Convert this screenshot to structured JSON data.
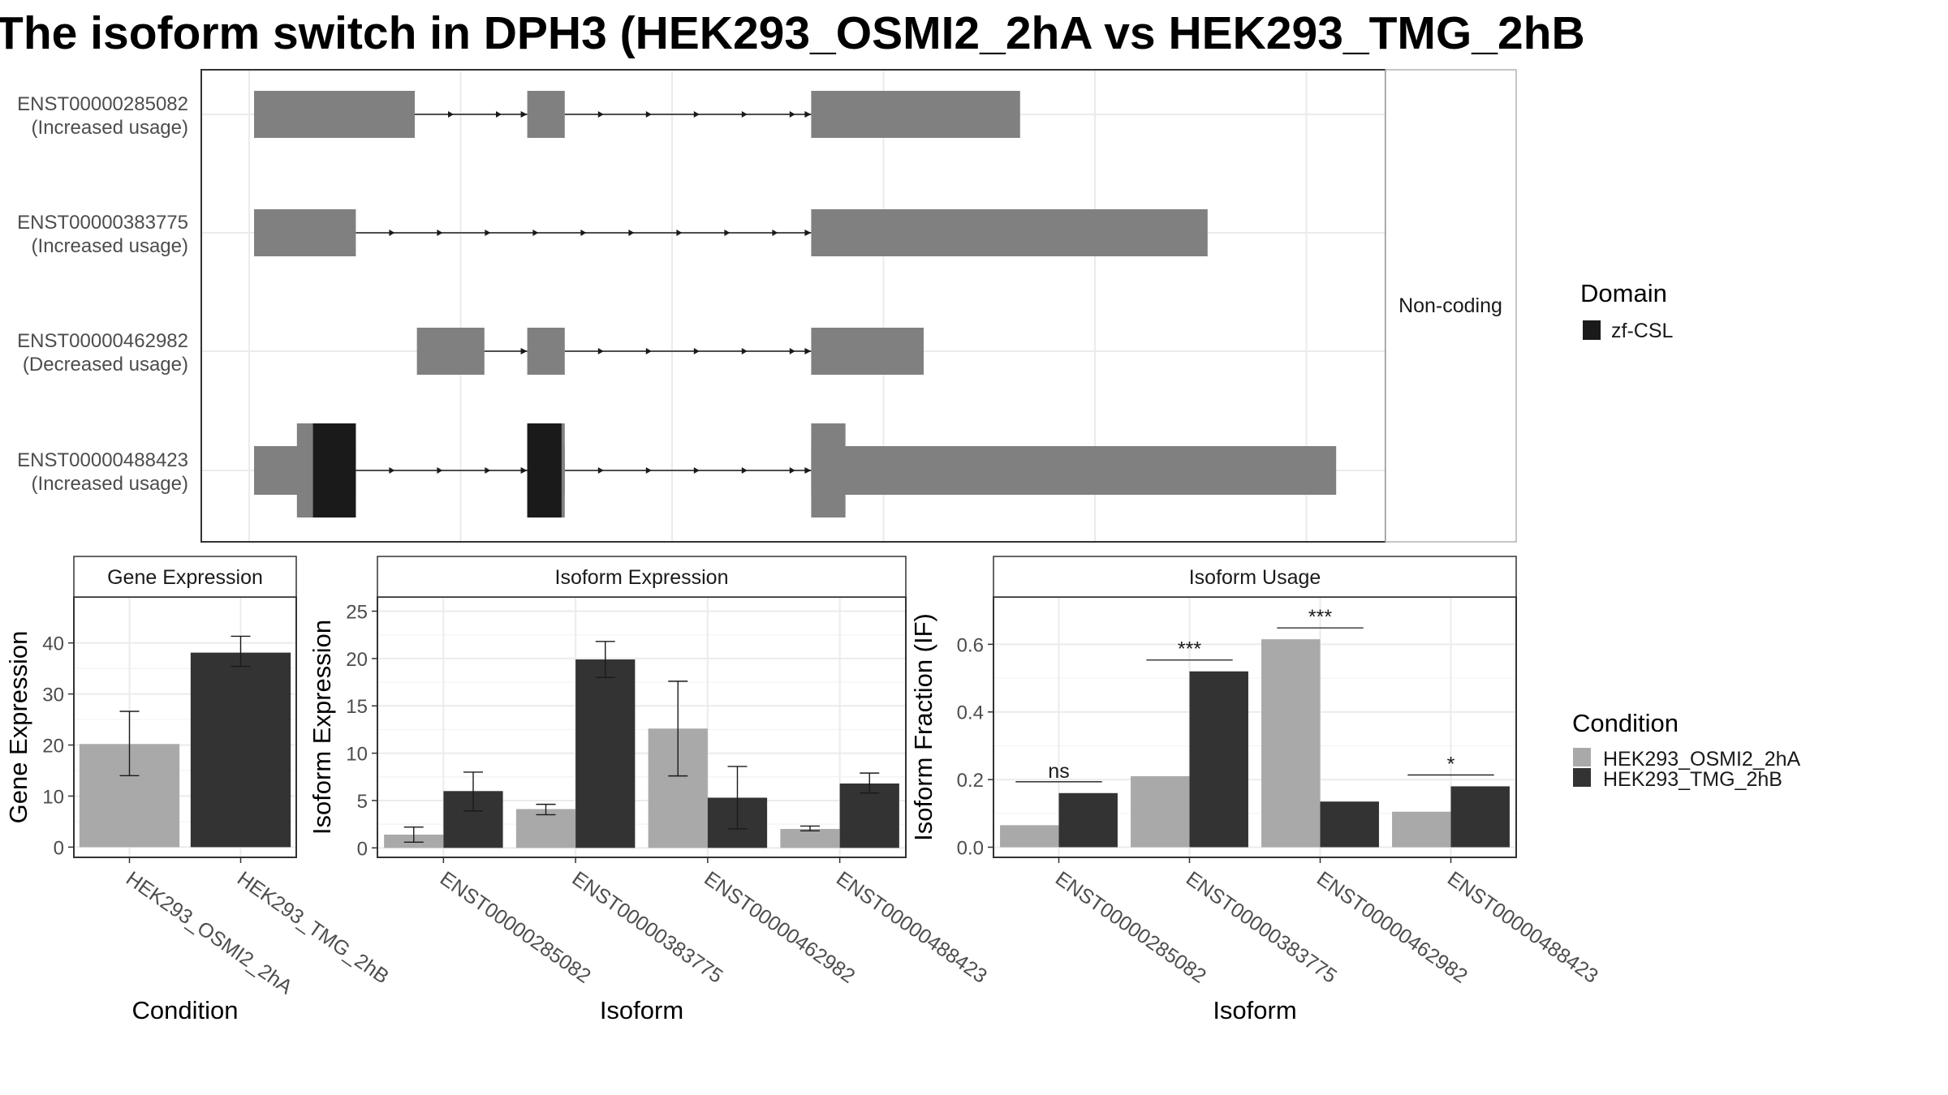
{
  "title": "The isoform switch in DPH3 (HEK293_OSMI2_2hA vs HEK293_TMG_2hB",
  "colors": {
    "exon": "#808080",
    "domain": "#1a1a1a",
    "condition_a": "#a9a9a9",
    "condition_b": "#333333"
  },
  "chart_data": [
    {
      "type": "gene-structure",
      "strip_label": "Non-coding",
      "domain_legend": {
        "title": "Domain",
        "entries": [
          {
            "name": "zf-CSL",
            "color": "#1a1a1a"
          }
        ]
      },
      "x_range": [
        0,
        100
      ],
      "transcripts": [
        {
          "id": "ENST00000285082",
          "usage": "(Increased usage)",
          "exons": [
            [
              0,
              15
            ],
            [
              25.5,
              29
            ],
            [
              52,
              71.5
            ]
          ],
          "domains": []
        },
        {
          "id": "ENST00000383775",
          "usage": "(Increased usage)",
          "exons": [
            [
              0,
              9.5
            ],
            [
              52,
              89
            ]
          ],
          "domains": []
        },
        {
          "id": "ENST00000462982",
          "usage": "(Decreased usage)",
          "exons": [
            [
              15.2,
              21.5
            ],
            [
              25.5,
              29
            ],
            [
              52,
              62.5
            ]
          ],
          "domains": []
        },
        {
          "id": "ENST00000488423",
          "usage": "(Increased usage)",
          "exons": [
            [
              0,
              9.5
            ],
            [
              25.5,
              29
            ],
            [
              52,
              101
            ]
          ],
          "cds": [
            [
              4,
              9.5
            ],
            [
              25.5,
              29
            ],
            [
              52,
              55.2
            ]
          ],
          "domains": [
            {
              "name": "zf-CSL",
              "ranges": [
                [
                  5.5,
                  9.5
                ],
                [
                  25.5,
                  28.7
                ]
              ]
            }
          ]
        }
      ]
    },
    {
      "type": "bar",
      "title": "Gene Expression",
      "xlabel": "Condition",
      "ylabel": "Gene Expression",
      "ylim": [
        -2,
        49
      ],
      "yticks": [
        0,
        10,
        20,
        30,
        40
      ],
      "categories": [
        "HEK293_OSMI2_2hA",
        "HEK293_TMG_2hB"
      ],
      "values": [
        20.2,
        38.1
      ],
      "errors": [
        [
          14.0,
          26.6
        ],
        [
          35.4,
          41.3
        ]
      ]
    },
    {
      "type": "bar",
      "title": "Isoform Expression",
      "xlabel": "Isoform",
      "ylabel": "Isoform Expression",
      "ylim": [
        -1,
        26.5
      ],
      "yticks": [
        0,
        5,
        10,
        15,
        20,
        25
      ],
      "categories": [
        "ENST00000285082",
        "ENST00000383775",
        "ENST00000462982",
        "ENST00000488423"
      ],
      "series": [
        {
          "name": "HEK293_OSMI2_2hA",
          "values": [
            1.4,
            4.1,
            12.6,
            2.0
          ],
          "errors": [
            [
              0.6,
              2.2
            ],
            [
              3.5,
              4.6
            ],
            [
              7.6,
              17.6
            ],
            [
              1.8,
              2.3
            ]
          ]
        },
        {
          "name": "HEK293_TMG_2hB",
          "values": [
            6.0,
            19.9,
            5.3,
            6.8
          ],
          "errors": [
            [
              3.9,
              8.0
            ],
            [
              18.0,
              21.8
            ],
            [
              2.0,
              8.6
            ],
            [
              5.8,
              7.9
            ]
          ]
        }
      ]
    },
    {
      "type": "bar",
      "title": "Isoform Usage",
      "xlabel": "Isoform",
      "ylabel": "Isoform Fraction (IF)",
      "ylim": [
        -0.03,
        0.74
      ],
      "yticks": [
        "0.0",
        "0.2",
        "0.4",
        "0.6"
      ],
      "categories": [
        "ENST00000285082",
        "ENST00000383775",
        "ENST00000462982",
        "ENST00000488423"
      ],
      "series": [
        {
          "name": "HEK293_OSMI2_2hA",
          "values": [
            0.065,
            0.21,
            0.615,
            0.105
          ]
        },
        {
          "name": "HEK293_TMG_2hB",
          "values": [
            0.16,
            0.52,
            0.135,
            0.18
          ]
        }
      ],
      "significance": [
        "ns",
        "***",
        "***",
        "*"
      ]
    }
  ],
  "condition_legend": {
    "title": "Condition",
    "entries": [
      {
        "name": "HEK293_OSMI2_2hA",
        "color": "#a9a9a9"
      },
      {
        "name": "HEK293_TMG_2hB",
        "color": "#333333"
      }
    ]
  }
}
